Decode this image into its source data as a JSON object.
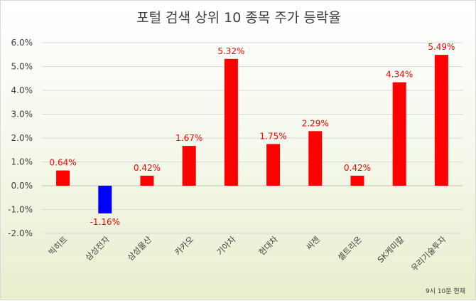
{
  "chart_data": {
    "type": "bar",
    "title": "포털 검색 상위 10 종목 주가 등락율",
    "categories": [
      "빅히트",
      "삼성전자",
      "삼성물산",
      "카카오",
      "기아차",
      "현대차",
      "씨젠",
      "셀트리온",
      "SK케미칼",
      "우리기술투자"
    ],
    "values": [
      0.64,
      -1.16,
      0.42,
      1.67,
      5.32,
      1.75,
      2.29,
      0.42,
      4.34,
      5.49
    ],
    "data_labels": [
      "0.64%",
      "-1.16%",
      "0.42%",
      "1.67%",
      "5.32%",
      "1.75%",
      "2.29%",
      "0.42%",
      "4.34%",
      "5.49%"
    ],
    "ylim": [
      -2.0,
      6.0
    ],
    "yticks": [
      -2.0,
      -1.0,
      0.0,
      1.0,
      2.0,
      3.0,
      4.0,
      5.0,
      6.0
    ],
    "ytick_labels": [
      "-2.0%",
      "-1.0%",
      "0.0%",
      "1.0%",
      "2.0%",
      "3.0%",
      "4.0%",
      "5.0%",
      "6.0%"
    ],
    "grid": true,
    "colors": {
      "positive": "#ff0000",
      "negative": "#0000ff",
      "label_positive": "#ff0000",
      "label_negative": "#ff0000"
    },
    "footnote": "9시 10분 현재"
  }
}
